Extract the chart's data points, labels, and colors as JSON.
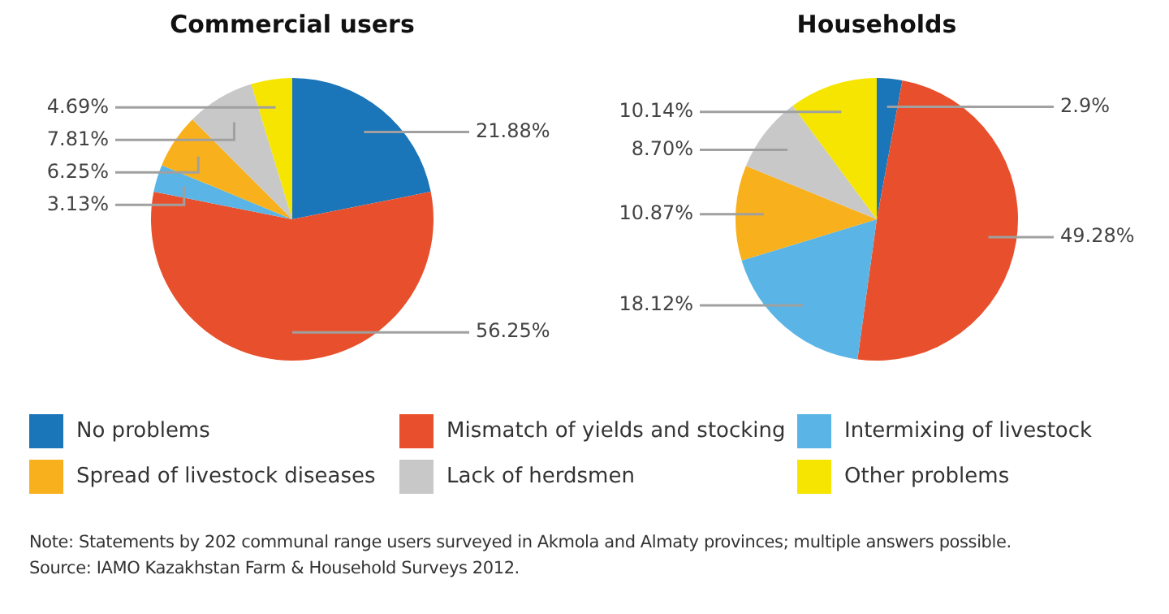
{
  "chart_data": [
    {
      "type": "pie",
      "title": "Commercial users",
      "categories": [
        "No problems",
        "Mismatch of yields and stocking",
        "Intermixing of livestock",
        "Spread of livestock diseases",
        "Lack of herdsmen",
        "Other problems"
      ],
      "values": [
        21.88,
        56.25,
        3.13,
        6.25,
        7.81,
        4.69
      ],
      "value_labels": [
        "21.88%",
        "56.25%",
        "3.13%",
        "6.25%",
        "7.81%",
        "4.69%"
      ],
      "colors": [
        "#1a75b9",
        "#e8502d",
        "#5ab4e5",
        "#f8b01c",
        "#c8c8c8",
        "#f6e500"
      ],
      "legend": "bottom",
      "annotations": [
        "Note: Statements by 202 communal range users surveyed in Akmola and Almaty provinces; multiple answers possible.",
        "Source: IAMO Kazakhstan Farm & Household Surveys 2012."
      ]
    },
    {
      "type": "pie",
      "title": "Households",
      "categories": [
        null,
        null,
        null,
        null,
        null,
        null
      ],
      "values": [
        2.9,
        49.28,
        18.12,
        10.87,
        8.7,
        10.14
      ],
      "value_labels": [
        "2.9%",
        "49.28%",
        "18.12%",
        "10.87%",
        "8.70%",
        "10.14%"
      ],
      "colors": [
        "#1a75b9",
        "#e8502d",
        "#5ab4e5",
        "#f8b01c",
        "#c8c8c8",
        "#f6e500"
      ]
    }
  ]
}
